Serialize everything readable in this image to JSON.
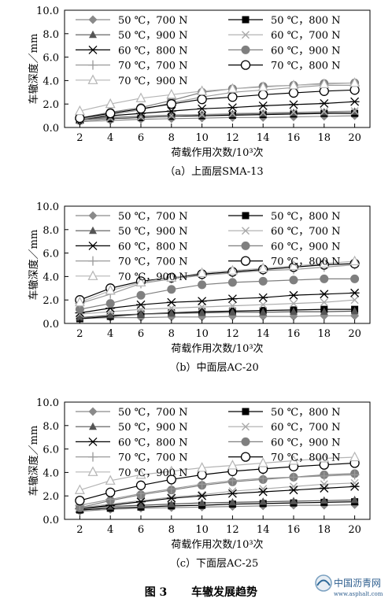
{
  "figure_caption": {
    "number": "图 3",
    "title": "车辙发展趋势"
  },
  "watermark": {
    "text": "中国沥青网",
    "url": "www.asphalt.com"
  },
  "chart_data": [
    {
      "type": "line",
      "caption": "（a）上面层SMA-13",
      "xlabel": "荷载作用次数/10³次",
      "ylabel": "车辙深度／mm",
      "x": [
        2,
        4,
        6,
        8,
        10,
        12,
        14,
        16,
        18,
        20
      ],
      "x_ticks": [
        "2",
        "4",
        "6",
        "8",
        "10",
        "12",
        "14",
        "16",
        "18",
        "20"
      ],
      "y_ticks": [
        "0.0",
        "2.0",
        "4.0",
        "6.0",
        "8.0",
        "10.0"
      ],
      "ylim": [
        0,
        10
      ],
      "grid": false,
      "legend": "top, inside, two columns",
      "series": [
        {
          "name": "50 ℃，700 N",
          "marker": "diamond",
          "color": "#8a8a8a",
          "values": [
            0.5,
            0.6,
            0.7,
            0.75,
            0.8,
            0.85,
            0.85,
            0.9,
            0.95,
            1.0
          ]
        },
        {
          "name": "50 ℃，800 N",
          "marker": "square",
          "color": "#000000",
          "values": [
            0.6,
            0.75,
            0.85,
            0.95,
            1.0,
            1.05,
            1.1,
            1.15,
            1.2,
            1.2
          ]
        },
        {
          "name": "50 ℃，900 N",
          "marker": "triangle",
          "color": "#555555",
          "values": [
            0.7,
            0.85,
            0.95,
            1.05,
            1.1,
            1.15,
            1.2,
            1.25,
            1.3,
            1.35
          ]
        },
        {
          "name": "60 ℃，700 N",
          "marker": "x",
          "color": "#aaaaaa",
          "values": [
            0.6,
            0.8,
            0.9,
            1.0,
            1.1,
            1.2,
            1.25,
            1.3,
            1.35,
            1.4
          ]
        },
        {
          "name": "60 ℃，800 N",
          "marker": "star",
          "color": "#000000",
          "values": [
            0.7,
            1.0,
            1.2,
            1.4,
            1.6,
            1.7,
            1.85,
            1.95,
            2.05,
            2.2
          ]
        },
        {
          "name": "60 ℃，900 N",
          "marker": "circle-filled",
          "color": "#7f7f7f",
          "values": [
            0.8,
            1.3,
            1.7,
            2.3,
            3.0,
            3.3,
            3.5,
            3.6,
            3.75,
            3.8
          ]
        },
        {
          "name": "70 ℃，700 N",
          "marker": "plus",
          "color": "#999999",
          "values": [
            0.7,
            1.1,
            1.5,
            2.1,
            2.6,
            3.0,
            3.2,
            3.4,
            3.6,
            3.6
          ]
        },
        {
          "name": "70 ℃，800 N",
          "marker": "circle-open",
          "color": "#000000",
          "values": [
            0.8,
            1.2,
            1.6,
            2.0,
            2.4,
            2.6,
            2.8,
            2.95,
            3.1,
            3.2
          ]
        },
        {
          "name": "70 ℃，900 N",
          "marker": "triangle-open",
          "color": "#b5b5b5",
          "values": [
            1.4,
            2.0,
            2.5,
            2.8,
            3.1,
            3.3,
            3.45,
            3.6,
            3.7,
            3.8
          ]
        }
      ]
    },
    {
      "type": "line",
      "caption": "（b）中面层AC-20",
      "xlabel": "荷载作用次数/10³次",
      "ylabel": "车辙深度／mm",
      "x": [
        2,
        4,
        6,
        8,
        10,
        12,
        14,
        16,
        18,
        20
      ],
      "x_ticks": [
        "2",
        "4",
        "6",
        "8",
        "10",
        "12",
        "14",
        "16",
        "18",
        "20"
      ],
      "y_ticks": [
        "0.0",
        "2.0",
        "4.0",
        "6.0",
        "8.0",
        "10.0"
      ],
      "ylim": [
        0,
        10
      ],
      "grid": false,
      "legend": "top, inside, two columns",
      "series": [
        {
          "name": "50 ℃，700 N",
          "marker": "diamond",
          "color": "#8a8a8a",
          "values": [
            0.4,
            0.5,
            0.5,
            0.55,
            0.55,
            0.6,
            0.6,
            0.6,
            0.65,
            0.65
          ]
        },
        {
          "name": "50 ℃，800 N",
          "marker": "square",
          "color": "#000000",
          "values": [
            0.4,
            0.6,
            0.8,
            0.9,
            1.0,
            1.05,
            1.1,
            1.15,
            1.2,
            1.2
          ]
        },
        {
          "name": "50 ℃，900 N",
          "marker": "triangle",
          "color": "#555555",
          "values": [
            0.5,
            0.7,
            0.8,
            0.85,
            0.9,
            0.95,
            0.95,
            1.0,
            1.0,
            1.05
          ]
        },
        {
          "name": "60 ℃，700 N",
          "marker": "x",
          "color": "#aaaaaa",
          "values": [
            0.8,
            1.0,
            1.2,
            1.3,
            1.4,
            1.5,
            1.6,
            1.7,
            1.8,
            2.0
          ]
        },
        {
          "name": "60 ℃，800 N",
          "marker": "star",
          "color": "#000000",
          "values": [
            0.9,
            1.3,
            1.6,
            1.8,
            1.9,
            2.1,
            2.2,
            2.4,
            2.5,
            2.6
          ]
        },
        {
          "name": "60 ℃，900 N",
          "marker": "circle-filled",
          "color": "#7f7f7f",
          "values": [
            1.2,
            1.7,
            2.4,
            2.9,
            3.3,
            3.5,
            3.6,
            3.7,
            3.8,
            3.8
          ]
        },
        {
          "name": "70 ℃，700 N",
          "marker": "plus",
          "color": "#999999",
          "values": [
            1.7,
            2.5,
            3.4,
            3.8,
            4.1,
            4.3,
            4.5,
            4.6,
            4.8,
            5.0
          ]
        },
        {
          "name": "70 ℃，800 N",
          "marker": "circle-open",
          "color": "#000000",
          "values": [
            2.0,
            3.0,
            3.6,
            3.9,
            4.2,
            4.4,
            4.6,
            4.8,
            5.0,
            5.1
          ]
        },
        {
          "name": "70 ℃，900 N",
          "marker": "triangle-open",
          "color": "#b5b5b5",
          "values": [
            1.8,
            2.8,
            3.5,
            3.9,
            4.3,
            4.5,
            4.7,
            4.9,
            5.1,
            5.3
          ]
        }
      ]
    },
    {
      "type": "line",
      "caption": "（c）下面层AC-25",
      "xlabel": "荷载作用次数/10³次",
      "ylabel": "车辙深度／mm",
      "x": [
        2,
        4,
        6,
        8,
        10,
        12,
        14,
        16,
        18,
        20
      ],
      "x_ticks": [
        "2",
        "4",
        "6",
        "8",
        "10",
        "12",
        "14",
        "16",
        "18",
        "20"
      ],
      "y_ticks": [
        "0.0",
        "2.0",
        "4.0",
        "6.0",
        "8.0",
        "10.0"
      ],
      "ylim": [
        0,
        10
      ],
      "grid": false,
      "legend": "top, inside, two columns",
      "series": [
        {
          "name": "50 ℃，700 N",
          "marker": "diamond",
          "color": "#8a8a8a",
          "values": [
            0.7,
            0.85,
            0.95,
            1.0,
            1.05,
            1.1,
            1.15,
            1.2,
            1.2,
            1.25
          ]
        },
        {
          "name": "50 ℃，800 N",
          "marker": "square",
          "color": "#000000",
          "values": [
            0.8,
            0.95,
            1.05,
            1.15,
            1.2,
            1.3,
            1.35,
            1.4,
            1.45,
            1.5
          ]
        },
        {
          "name": "50 ℃，900 N",
          "marker": "triangle",
          "color": "#555555",
          "values": [
            0.9,
            1.1,
            1.2,
            1.3,
            1.4,
            1.45,
            1.5,
            1.55,
            1.6,
            1.65
          ]
        },
        {
          "name": "60 ℃，700 N",
          "marker": "x",
          "color": "#aaaaaa",
          "values": [
            1.0,
            1.3,
            1.6,
            1.9,
            2.1,
            2.4,
            2.6,
            2.8,
            3.0,
            3.1
          ]
        },
        {
          "name": "60 ℃，800 N",
          "marker": "star",
          "color": "#000000",
          "values": [
            0.9,
            1.2,
            1.5,
            1.8,
            2.0,
            2.2,
            2.35,
            2.5,
            2.65,
            2.8
          ]
        },
        {
          "name": "60 ℃，900 N",
          "marker": "circle-filled",
          "color": "#7f7f7f",
          "values": [
            1.0,
            1.6,
            2.1,
            2.5,
            2.9,
            3.2,
            3.4,
            3.6,
            3.8,
            3.9
          ]
        },
        {
          "name": "70 ℃，700 N",
          "marker": "plus",
          "color": "#999999",
          "values": [
            1.2,
            1.7,
            2.2,
            2.6,
            3.0,
            3.3,
            3.5,
            3.6,
            3.7,
            3.8
          ]
        },
        {
          "name": "70 ℃，800 N",
          "marker": "circle-open",
          "color": "#000000",
          "values": [
            1.6,
            2.3,
            2.9,
            3.4,
            3.8,
            4.1,
            4.3,
            4.5,
            4.65,
            4.8
          ]
        },
        {
          "name": "70 ℃，900 N",
          "marker": "triangle-open",
          "color": "#b5b5b5",
          "values": [
            2.5,
            3.3,
            3.8,
            4.1,
            4.4,
            4.6,
            4.8,
            5.0,
            5.2,
            5.3
          ]
        }
      ]
    }
  ]
}
